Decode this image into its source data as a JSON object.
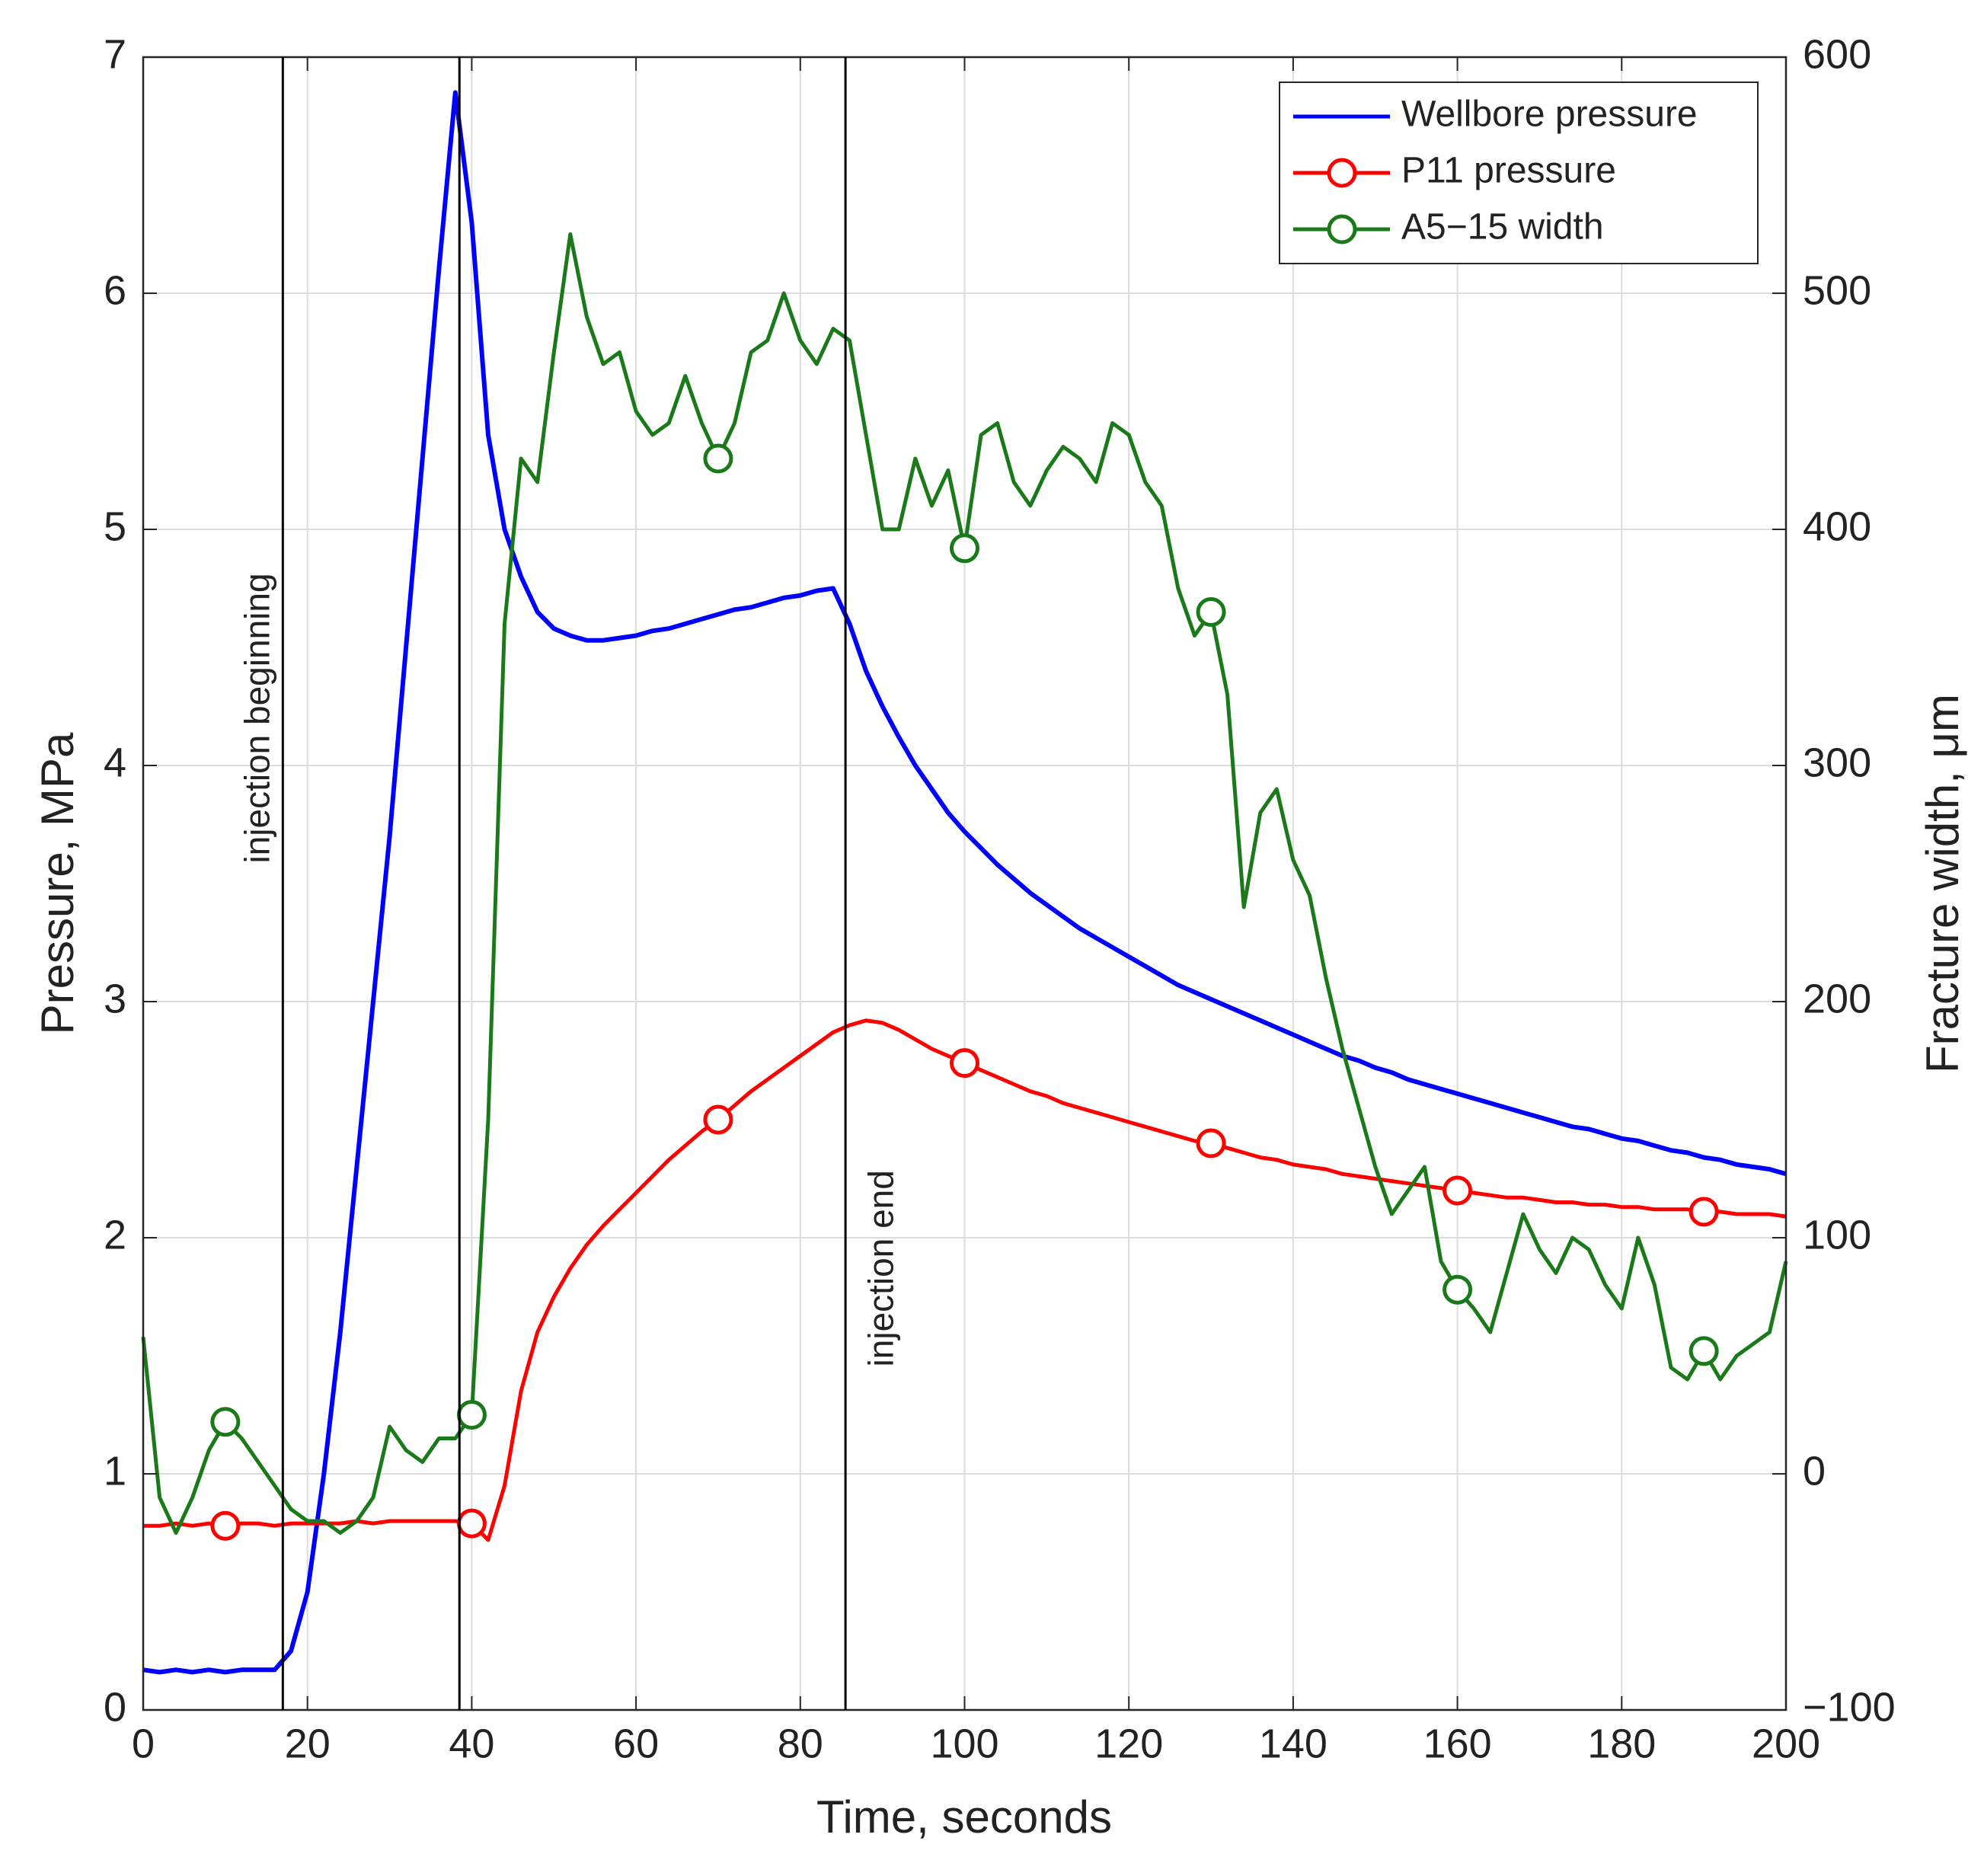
{
  "chart_data": {
    "type": "line",
    "xlabel": "Time, seconds",
    "ylabel": "Pressure, MPa",
    "y2label": "Fracture width, μm",
    "xlim": [
      0,
      200
    ],
    "xticks": [
      0,
      20,
      40,
      60,
      80,
      100,
      120,
      140,
      160,
      180,
      200
    ],
    "ylim": [
      0,
      7
    ],
    "yticks": [
      0,
      1,
      2,
      3,
      4,
      5,
      6,
      7
    ],
    "y2lim": [
      -100,
      600
    ],
    "y2ticks": [
      {
        "value": -100,
        "label": "−100"
      },
      0,
      100,
      200,
      300,
      400,
      500,
      600
    ],
    "grid": true,
    "legend": "northeast",
    "vlines": [
      17,
      38.5,
      85.5
    ],
    "annotations": [
      {
        "text": "injection beginning",
        "x": 17,
        "y": 4.2
      },
      {
        "text": "injection end",
        "x": 85.5,
        "y": 1.87
      }
    ],
    "marker_x": [
      10,
      40,
      70,
      100,
      130,
      160,
      190
    ],
    "x": [
      0,
      2,
      4,
      6,
      8,
      10,
      12,
      14,
      16,
      18,
      20,
      22,
      24,
      26,
      28,
      30,
      32,
      34,
      36,
      38,
      40,
      42,
      44,
      46,
      48,
      50,
      52,
      54,
      56,
      58,
      60,
      62,
      64,
      66,
      68,
      70,
      72,
      74,
      76,
      78,
      80,
      82,
      84,
      86,
      88,
      90,
      92,
      94,
      96,
      98,
      100,
      102,
      104,
      106,
      108,
      110,
      112,
      114,
      116,
      118,
      120,
      122,
      124,
      126,
      128,
      130,
      132,
      134,
      136,
      138,
      140,
      142,
      144,
      146,
      148,
      150,
      152,
      154,
      156,
      158,
      160,
      162,
      164,
      166,
      168,
      170,
      172,
      174,
      176,
      178,
      180,
      182,
      184,
      186,
      188,
      190,
      192,
      194,
      196,
      198,
      200
    ],
    "series": [
      {
        "name": "Wellbore pressure",
        "color": "#0000ff",
        "marker": "none",
        "axis": "y",
        "values": [
          0.17,
          0.16,
          0.17,
          0.16,
          0.17,
          0.16,
          0.17,
          0.17,
          0.17,
          0.25,
          0.5,
          1.0,
          1.6,
          2.3,
          3.0,
          3.7,
          4.5,
          5.3,
          6.1,
          6.85,
          6.3,
          5.4,
          5.0,
          4.8,
          4.65,
          4.58,
          4.55,
          4.53,
          4.53,
          4.54,
          4.55,
          4.57,
          4.58,
          4.6,
          4.62,
          4.64,
          4.66,
          4.67,
          4.69,
          4.71,
          4.72,
          4.74,
          4.75,
          4.6,
          4.4,
          4.25,
          4.12,
          4.0,
          3.9,
          3.8,
          3.72,
          3.65,
          3.58,
          3.52,
          3.46,
          3.41,
          3.36,
          3.31,
          3.27,
          3.23,
          3.19,
          3.15,
          3.11,
          3.07,
          3.04,
          3.01,
          2.98,
          2.95,
          2.92,
          2.89,
          2.86,
          2.83,
          2.8,
          2.77,
          2.75,
          2.72,
          2.7,
          2.67,
          2.65,
          2.63,
          2.61,
          2.59,
          2.57,
          2.55,
          2.53,
          2.51,
          2.49,
          2.47,
          2.46,
          2.44,
          2.42,
          2.41,
          2.39,
          2.37,
          2.36,
          2.34,
          2.33,
          2.31,
          2.3,
          2.29,
          2.27
        ]
      },
      {
        "name": "P11 pressure",
        "color": "#ff0000",
        "marker": "o",
        "axis": "y",
        "values": [
          0.78,
          0.78,
          0.79,
          0.78,
          0.79,
          0.78,
          0.79,
          0.79,
          0.78,
          0.79,
          0.79,
          0.79,
          0.79,
          0.8,
          0.79,
          0.8,
          0.8,
          0.8,
          0.8,
          0.8,
          0.79,
          0.72,
          0.95,
          1.35,
          1.6,
          1.75,
          1.87,
          1.97,
          2.05,
          2.12,
          2.19,
          2.26,
          2.33,
          2.39,
          2.45,
          2.5,
          2.56,
          2.62,
          2.67,
          2.72,
          2.77,
          2.82,
          2.87,
          2.9,
          2.92,
          2.91,
          2.88,
          2.84,
          2.8,
          2.77,
          2.74,
          2.71,
          2.68,
          2.65,
          2.62,
          2.6,
          2.57,
          2.55,
          2.53,
          2.51,
          2.49,
          2.47,
          2.45,
          2.43,
          2.41,
          2.4,
          2.38,
          2.36,
          2.34,
          2.33,
          2.31,
          2.3,
          2.29,
          2.27,
          2.26,
          2.25,
          2.24,
          2.23,
          2.22,
          2.21,
          2.2,
          2.19,
          2.18,
          2.17,
          2.17,
          2.16,
          2.15,
          2.15,
          2.14,
          2.14,
          2.13,
          2.13,
          2.12,
          2.12,
          2.12,
          2.11,
          2.11,
          2.1,
          2.1,
          2.1,
          2.09
        ]
      },
      {
        "name": "A5−15 width",
        "color": "#1a7a1a",
        "marker": "o",
        "axis": "y2",
        "values": [
          58,
          -10,
          -25,
          -10,
          10,
          22,
          15,
          5,
          -5,
          -15,
          -20,
          -20,
          -25,
          -20,
          -10,
          20,
          10,
          5,
          15,
          15,
          25,
          150,
          360,
          430,
          420,
          475,
          525,
          490,
          470,
          475,
          450,
          440,
          445,
          465,
          445,
          430,
          445,
          475,
          480,
          500,
          480,
          470,
          485,
          480,
          440,
          400,
          400,
          430,
          410,
          425,
          392,
          440,
          445,
          420,
          410,
          425,
          435,
          430,
          420,
          445,
          440,
          420,
          410,
          375,
          355,
          365,
          330,
          240,
          280,
          290,
          260,
          245,
          210,
          180,
          155,
          130,
          110,
          120,
          130,
          90,
          78,
          70,
          60,
          85,
          110,
          95,
          85,
          100,
          95,
          80,
          70,
          100,
          80,
          45,
          40,
          52,
          40,
          50,
          55,
          60,
          90
        ]
      }
    ]
  }
}
